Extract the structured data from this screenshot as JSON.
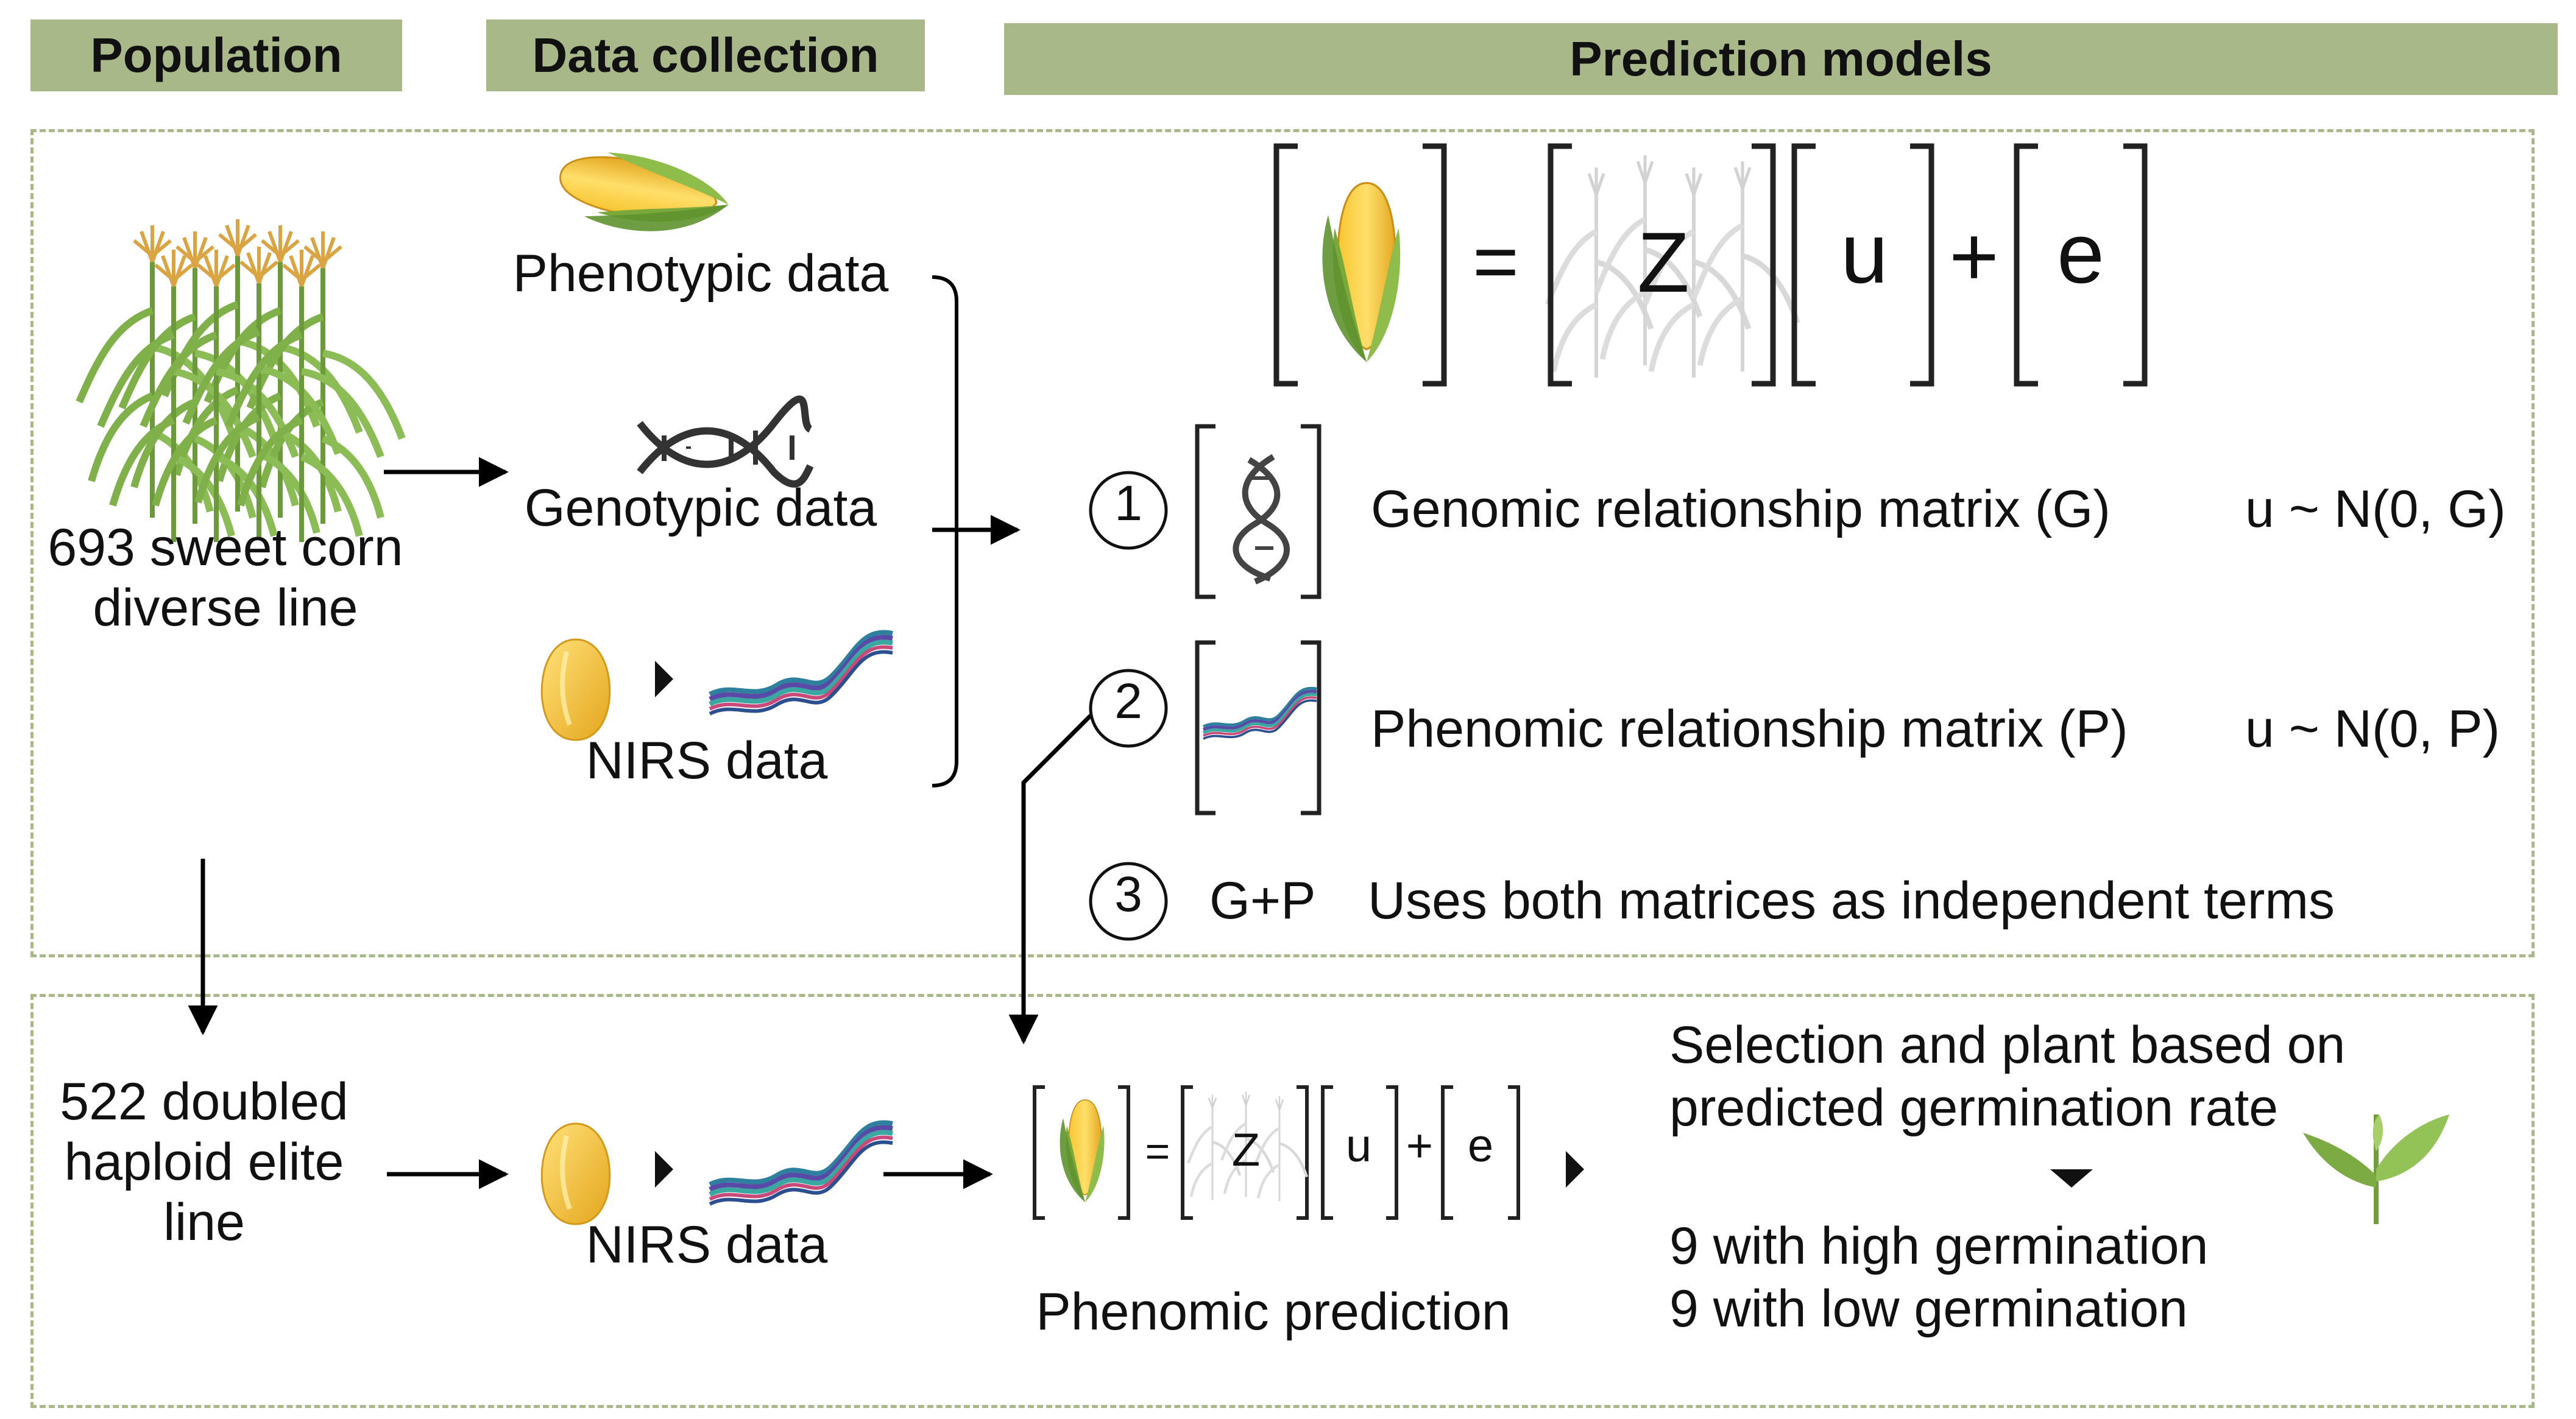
{
  "headers": {
    "population": "Population",
    "data_collection": "Data collection",
    "prediction_models": "Prediction  models"
  },
  "population": {
    "diverse_line": [
      "693 sweet corn",
      "diverse line"
    ],
    "elite_line": [
      "522 doubled",
      "haploid elite",
      "line"
    ]
  },
  "data_collection": {
    "phenotypic": "Phenotypic data",
    "genotypic": "Genotypic data",
    "nirs": "NIRS data",
    "nirs_bottom": "NIRS data"
  },
  "equation": {
    "z": "Z",
    "u": "u",
    "e": "e",
    "equals": "=",
    "plus": "+"
  },
  "models": [
    {
      "num": "1",
      "label": "Genomic relationship matrix (G)",
      "dist": "u ~ N(0, G)"
    },
    {
      "num": "2",
      "label": "Phenomic relationship matrix (P)",
      "dist": "u ~ N(0, P)"
    },
    {
      "num": "3",
      "short": "G+P",
      "label": "Uses both matrices as independent terms"
    }
  ],
  "bottom": {
    "prediction_label": "Phenomic prediction",
    "selection": [
      "Selection and plant based on",
      "predicted  germination rate"
    ],
    "results": [
      "9  with high germination",
      "9  with low germination"
    ]
  },
  "colors": {
    "header_bg": "#a9b889",
    "dashed_border": "#a9b889",
    "corn_yellow": "#f2c230",
    "husk_green": "#7aa83a"
  }
}
